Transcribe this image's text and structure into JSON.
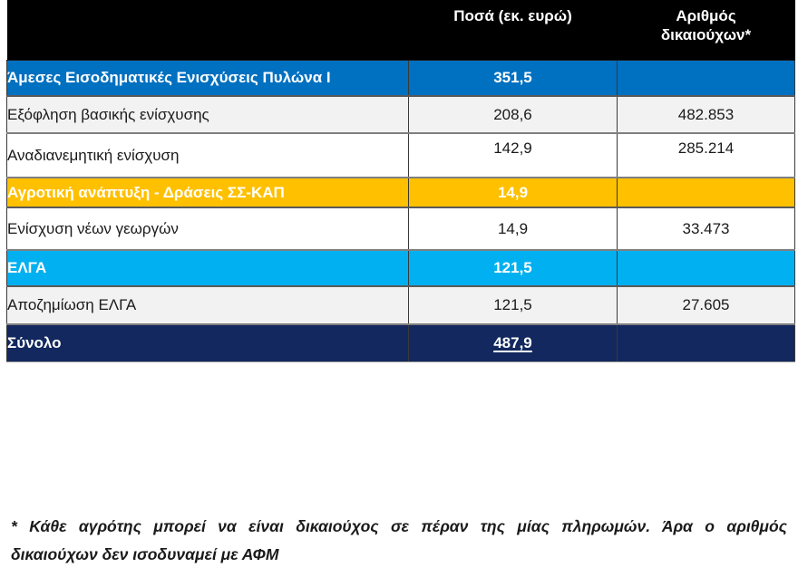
{
  "header": {
    "col1": "",
    "amounts": "Ποσά (εκ. ευρώ)",
    "beneficiaries": "Αριθμός δικαιούχων*"
  },
  "table": {
    "rows": [
      {
        "label": "Άμεσες Εισοδηματικές Ενισχύσεις Πυλώνα Ι",
        "amount": "351,5",
        "beneficiaries": "",
        "theme": "blue"
      },
      {
        "label": "Εξόφληση βασικής ενίσχυσης",
        "amount": "208,6",
        "beneficiaries": "482.853",
        "theme": "gray"
      },
      {
        "label": "Αναδιανεμητική ενίσχυση",
        "amount": "142,9",
        "beneficiaries": "285.214",
        "theme": "white"
      },
      {
        "label": "Αγροτική ανάπτυξη - Δράσεις ΣΣ-ΚΑΠ",
        "amount": "14,9",
        "beneficiaries": "",
        "theme": "gold"
      },
      {
        "label": "Ενίσχυση νέων γεωργών",
        "amount": "14,9",
        "beneficiaries": "33.473",
        "theme": "white"
      },
      {
        "label": "ΕΛΓΑ",
        "amount": "121,5",
        "beneficiaries": "",
        "theme": "cyan"
      },
      {
        "label": "Αποζημίωση ΕΛΓΑ",
        "amount": "121,5",
        "beneficiaries": "27.605",
        "theme": "gray"
      },
      {
        "label": "Σύνολο",
        "amount": "487,9",
        "beneficiaries": "",
        "theme": "navy",
        "amount_underlined": true
      }
    ]
  },
  "footnote": {
    "line1": "* Κάθε αγρότης μπορεί να είναι δικαιούχος σε πέραν της μίας πληρωμών. Άρα ο αριθμός",
    "line2": "δικαιούχων δεν  ισοδυναμεί με ΑΦΜ"
  },
  "colors": {
    "header_bg": "#000000",
    "pillar_blue": "#0070C0",
    "gold": "#FFC000",
    "light_blue": "#00B0F0",
    "navy": "#12285E",
    "gray_row": "#F2F2F2",
    "border_gray": "#7F7F7F"
  }
}
